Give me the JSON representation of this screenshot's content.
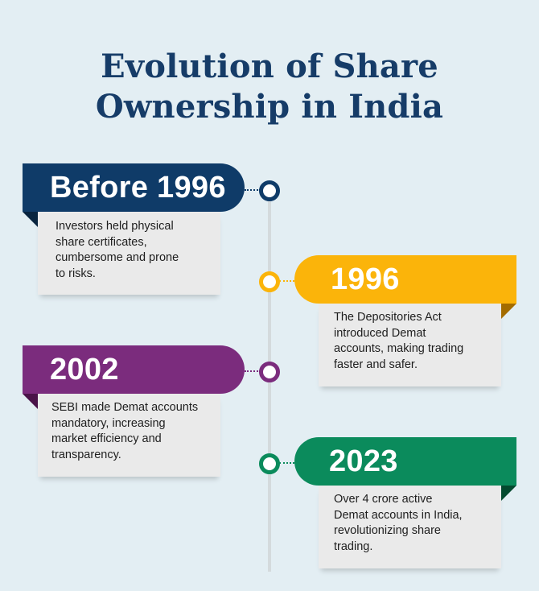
{
  "title": {
    "line1": "Evolution of Share",
    "line2": "Ownership in India"
  },
  "colors": {
    "background": "#e3eef3",
    "title": "#163c68",
    "navy": "#0f3b68",
    "gold": "#fbb40a",
    "purple": "#7b2c7d",
    "green": "#0b8b5c"
  },
  "milestones": [
    {
      "label": "Before 1996",
      "text": "Investors held physical\nshare certificates,\ncumbersome and prone\nto risks."
    },
    {
      "label": "1996",
      "text": "The Depositories Act\nintroduced Demat\naccounts, making trading\nfaster and safer."
    },
    {
      "label": "2002",
      "text": "SEBI made Demat accounts\nmandatory, increasing\nmarket efficiency and\ntransparency."
    },
    {
      "label": "2023",
      "text": "Over 4 crore active\nDemat accounts in India,\nrevolutionizing share\ntrading."
    }
  ]
}
